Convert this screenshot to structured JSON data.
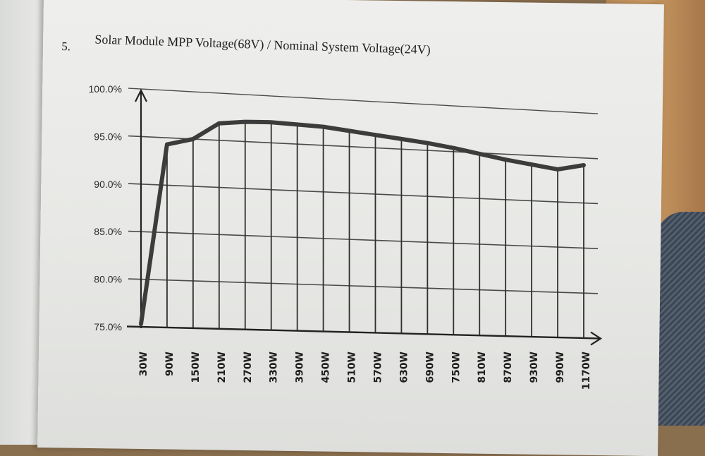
{
  "section_number": "5.",
  "chart_data": {
    "type": "line",
    "title": "Solar Module MPP Voltage(68V) / Nominal System Voltage(24V)",
    "xlabel": "",
    "ylabel": "",
    "categories": [
      "30W",
      "90W",
      "150W",
      "210W",
      "270W",
      "330W",
      "390W",
      "450W",
      "510W",
      "570W",
      "630W",
      "690W",
      "750W",
      "810W",
      "870W",
      "930W",
      "990W",
      "1170W"
    ],
    "yticks": [
      "75.0%",
      "80.0%",
      "85.0%",
      "90.0%",
      "95.0%",
      "100.0%"
    ],
    "ylim": [
      75,
      100
    ],
    "grid": true,
    "series": [
      {
        "values": [
          75.3,
          94.3,
          95.0,
          96.8,
          97.1,
          97.2,
          97.1,
          97.0,
          96.7,
          96.4,
          96.1,
          95.8,
          95.4,
          94.9,
          94.4,
          94.0,
          93.6,
          94.2
        ]
      }
    ],
    "colors": {
      "line": "#3c3c3c",
      "grid": "#2f2f2f"
    }
  }
}
